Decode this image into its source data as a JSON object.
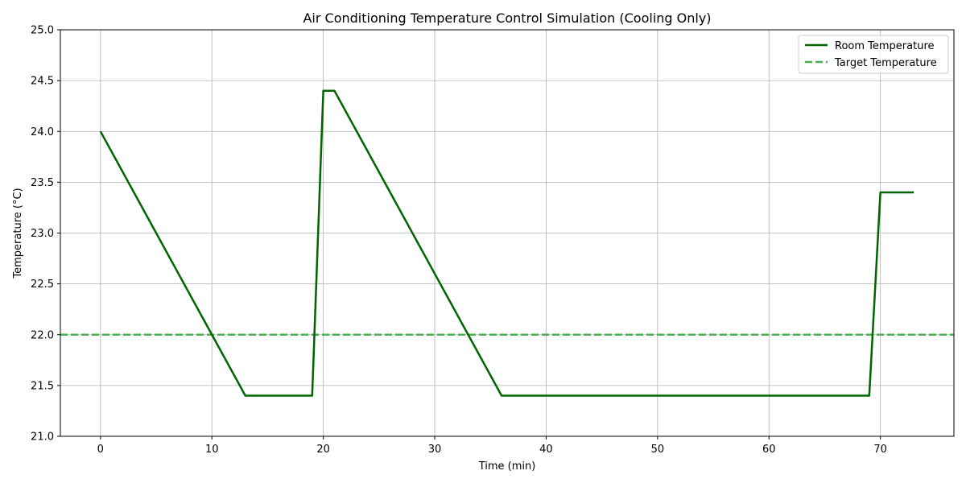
{
  "chart_data": {
    "type": "line",
    "title": "Air Conditioning Temperature Control Simulation (Cooling Only)",
    "xlabel": "Time (min)",
    "ylabel": "Temperature (°C)",
    "xlim": [
      -3.6,
      76.6
    ],
    "ylim": [
      21.0,
      25.0
    ],
    "xticks": [
      0,
      10,
      20,
      30,
      40,
      50,
      60,
      70
    ],
    "yticks": [
      21.0,
      21.5,
      22.0,
      22.5,
      23.0,
      23.5,
      24.0,
      24.5,
      25.0
    ],
    "xtick_labels": [
      "0",
      "10",
      "20",
      "30",
      "40",
      "50",
      "60",
      "70"
    ],
    "ytick_labels": [
      "21.0",
      "21.5",
      "22.0",
      "22.5",
      "23.0",
      "23.5",
      "24.0",
      "24.5",
      "25.0"
    ],
    "grid": true,
    "legend_position": "top-right",
    "series": [
      {
        "name": "Room Temperature",
        "style": "solid",
        "color": "#006400",
        "points": [
          [
            0,
            24.0
          ],
          [
            13,
            21.4
          ],
          [
            19,
            21.4
          ],
          [
            20,
            24.4
          ],
          [
            21,
            24.4
          ],
          [
            36,
            21.4
          ],
          [
            69,
            21.4
          ],
          [
            70,
            23.4
          ],
          [
            73,
            23.4
          ]
        ]
      },
      {
        "name": "Target Temperature",
        "style": "dashed",
        "color": "#4caf50",
        "y": 22.0
      }
    ]
  }
}
